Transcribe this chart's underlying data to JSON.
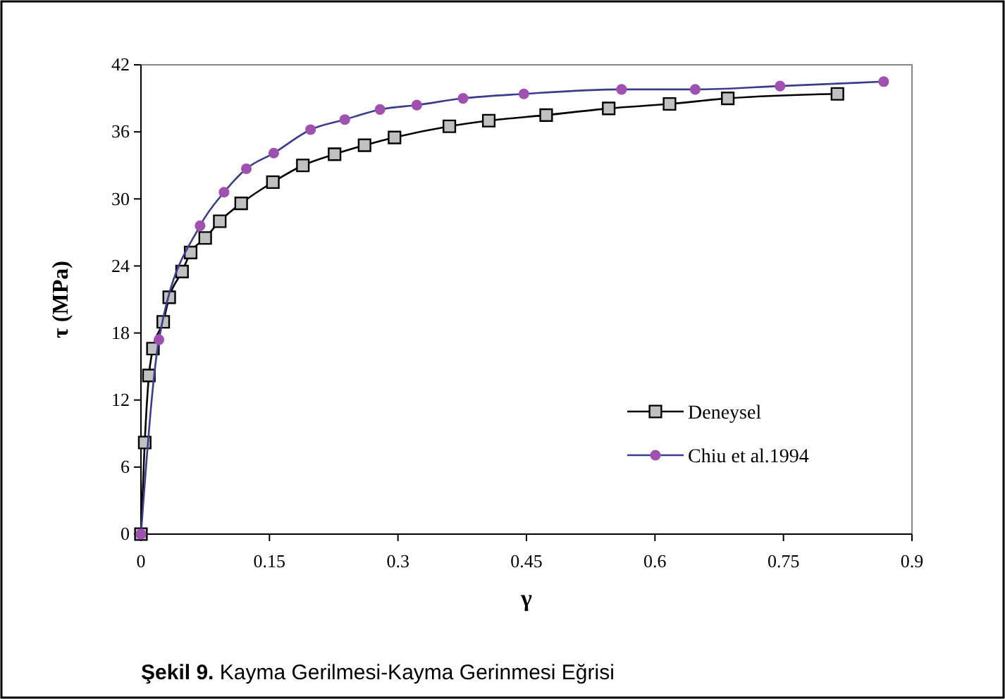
{
  "chart_data": {
    "type": "line",
    "xlabel": "γ",
    "ylabel": "τ (MPa)",
    "xlim": [
      0,
      0.9
    ],
    "xticks": [
      0,
      0.15,
      0.3,
      0.45,
      0.6,
      0.75,
      0.9
    ],
    "ylim": [
      0,
      42
    ],
    "yticks": [
      0,
      6,
      12,
      18,
      24,
      30,
      36,
      42
    ],
    "grid": false,
    "legend": "bottom right",
    "series": [
      {
        "name": "Deneysel",
        "color": "#000000",
        "marker": "square",
        "x": [
          0,
          0.0044,
          0.0093,
          0.014,
          0.026,
          0.033,
          0.048,
          0.058,
          0.075,
          0.092,
          0.117,
          0.154,
          0.189,
          0.226,
          0.261,
          0.296,
          0.36,
          0.406,
          0.473,
          0.546,
          0.617,
          0.685,
          0.813
        ],
        "values": [
          0,
          8.2,
          14.2,
          16.6,
          19.0,
          21.2,
          23.5,
          25.2,
          26.5,
          28.0,
          29.6,
          31.5,
          33.0,
          34.0,
          34.8,
          35.5,
          36.5,
          37.0,
          37.5,
          38.1,
          38.5,
          39.0,
          39.4
        ]
      },
      {
        "name": "Chiu et al.1994",
        "color": "#3c3c8c",
        "marker": "circle",
        "x": [
          0,
          0.021,
          0.069,
          0.097,
          0.123,
          0.155,
          0.198,
          0.238,
          0.279,
          0.322,
          0.376,
          0.447,
          0.561,
          0.647,
          0.746,
          0.867
        ],
        "values": [
          0,
          17.4,
          27.6,
          30.6,
          32.7,
          34.1,
          36.2,
          37.1,
          38.0,
          38.4,
          39.0,
          39.4,
          39.8,
          39.8,
          40.1,
          40.5
        ]
      }
    ],
    "annotations": [
      "Şekil 9. Kayma Gerilmesi-Kayma Gerinmesi Eğrisi"
    ]
  }
}
